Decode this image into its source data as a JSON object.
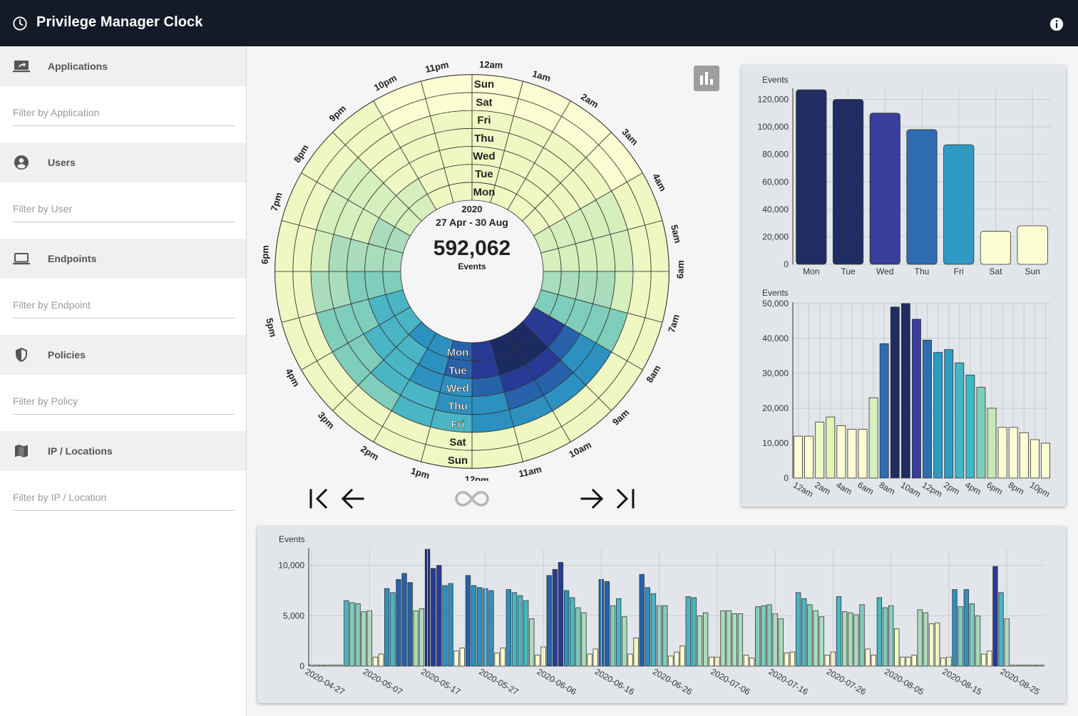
{
  "app": {
    "title": "Privilege Manager Clock"
  },
  "sidebar": {
    "sections": [
      {
        "label": "Applications",
        "placeholder": "Filter by Application",
        "icon": "application-icon"
      },
      {
        "label": "Users",
        "placeholder": "Filter by User",
        "icon": "user-icon"
      },
      {
        "label": "Endpoints",
        "placeholder": "Filter by Endpoint",
        "icon": "laptop-icon"
      },
      {
        "label": "Policies",
        "placeholder": "Filter by Policy",
        "icon": "shield-icon"
      },
      {
        "label": "IP / Locations",
        "placeholder": "Filter by IP / Location",
        "icon": "map-icon"
      }
    ]
  },
  "clock": {
    "year": "2020",
    "range": "27 Apr - 30 Aug",
    "total": "592,062",
    "total_label": "Events",
    "days": [
      "Mon",
      "Tue",
      "Wed",
      "Thu",
      "Fri",
      "Sat",
      "Sun"
    ],
    "hours": [
      "12am",
      "1am",
      "2am",
      "3am",
      "4am",
      "5am",
      "6am",
      "7am",
      "8am",
      "9am",
      "10am",
      "11am",
      "12pm",
      "1pm",
      "2pm",
      "3pm",
      "4pm",
      "5pm",
      "6pm",
      "7pm",
      "8pm",
      "9pm",
      "10pm",
      "11pm"
    ],
    "heat_levels": [
      [
        1,
        1,
        1,
        1,
        2,
        2,
        3,
        4,
        8,
        9,
        9,
        8,
        7,
        6,
        6,
        5,
        5,
        4,
        3,
        3,
        2,
        2,
        1,
        1
      ],
      [
        1,
        1,
        1,
        1,
        2,
        2,
        3,
        4,
        8,
        9,
        9,
        8,
        7,
        6,
        5,
        5,
        5,
        4,
        3,
        3,
        2,
        2,
        1,
        1
      ],
      [
        1,
        1,
        1,
        1,
        2,
        2,
        3,
        4,
        7,
        8,
        8,
        7,
        6,
        6,
        5,
        5,
        4,
        4,
        3,
        2,
        2,
        1,
        1,
        1
      ],
      [
        1,
        1,
        1,
        1,
        2,
        2,
        3,
        4,
        6,
        7,
        7,
        6,
        6,
        5,
        5,
        4,
        4,
        3,
        3,
        2,
        2,
        1,
        1,
        1
      ],
      [
        1,
        1,
        1,
        1,
        2,
        2,
        2,
        4,
        6,
        6,
        6,
        6,
        5,
        5,
        4,
        4,
        4,
        3,
        2,
        2,
        2,
        1,
        1,
        1
      ],
      [
        0,
        0,
        0,
        0,
        1,
        1,
        1,
        1,
        1,
        1,
        1,
        1,
        1,
        1,
        1,
        1,
        1,
        1,
        1,
        1,
        1,
        1,
        0,
        0
      ],
      [
        0,
        0,
        0,
        0,
        1,
        1,
        1,
        1,
        1,
        1,
        1,
        1,
        1,
        1,
        1,
        1,
        1,
        1,
        1,
        1,
        1,
        1,
        0,
        0
      ]
    ],
    "colors": [
      "#fdfdd3",
      "#eff8c2",
      "#d5efbd",
      "#a9dcbc",
      "#7fcdbb",
      "#4ab5c4",
      "#2c91c0",
      "#2762aa",
      "#273b96",
      "#1b2b62"
    ],
    "nav": {
      "first": "first-page-icon",
      "prev": "arrow-left-icon",
      "all": "infinity-icon",
      "next": "arrow-right-icon",
      "last": "last-page-icon"
    }
  },
  "chart_data": [
    {
      "type": "bar",
      "ylabel": "Events",
      "categories": [
        "Mon",
        "Tue",
        "Wed",
        "Thu",
        "Fri",
        "Sat",
        "Sun"
      ],
      "values": [
        127000,
        120000,
        110000,
        98000,
        87000,
        24000,
        28000
      ],
      "yticks": [
        "0",
        "20,000",
        "40,000",
        "60,000",
        "80,000",
        "100,000",
        "120,000"
      ],
      "ylim": [
        0,
        127000
      ],
      "colors": [
        "#1f2d62",
        "#1f2d62",
        "#383e9a",
        "#2f6cb0",
        "#2e9ac4",
        "#fdfdd3",
        "#fdfdd3"
      ]
    },
    {
      "type": "bar",
      "ylabel": "Events",
      "categories": [
        "12am",
        "1am",
        "2am",
        "3am",
        "4am",
        "5am",
        "6am",
        "7am",
        "8am",
        "9am",
        "10am",
        "11am",
        "12pm",
        "1pm",
        "2pm",
        "3pm",
        "4pm",
        "5pm",
        "6pm",
        "7pm",
        "8pm",
        "9pm",
        "10pm",
        "11pm"
      ],
      "tick_labels": [
        "12am",
        "2am",
        "4am",
        "6am",
        "8am",
        "10am",
        "12pm",
        "2pm",
        "4pm",
        "6pm",
        "8pm",
        "10pm"
      ],
      "values": [
        12000,
        12000,
        16000,
        17500,
        15000,
        14000,
        14000,
        23000,
        38500,
        49000,
        50000,
        45500,
        39500,
        36000,
        36800,
        33000,
        29500,
        26000,
        20000,
        14500,
        14500,
        13000,
        11000,
        10000
      ],
      "yticks": [
        "0",
        "10,000",
        "20,000",
        "30,000",
        "40,000",
        "50,000"
      ],
      "ylim": [
        0,
        50000
      ],
      "colors": [
        "#fdfdd3",
        "#fdfdd3",
        "#eff8c2",
        "#e3f3b5",
        "#fdfdd3",
        "#fdfdd3",
        "#fdfdd3",
        "#d5efbd",
        "#2f6cb0",
        "#1f2d62",
        "#1f2d62",
        "#383e9a",
        "#2f6cb0",
        "#2e9ac4",
        "#2e9ac4",
        "#41b6c4",
        "#41b6c4",
        "#7fcdbb",
        "#c7e9b4",
        "#fdfdd3",
        "#fdfdd3",
        "#fdfdd3",
        "#fdfdd3",
        "#fdfdd3"
      ]
    },
    {
      "type": "bar",
      "ylabel": "Events",
      "x_tick_labels": [
        "2020-04-27",
        "2020-05-07",
        "2020-05-17",
        "2020-05-27",
        "2020-06-06",
        "2020-06-16",
        "2020-06-26",
        "2020-07-06",
        "2020-07-16",
        "2020-07-26",
        "2020-08-05",
        "2020-08-15",
        "2020-08-25"
      ],
      "yticks": [
        "0",
        "5,000",
        "10,000"
      ],
      "ylim": [
        0,
        11600
      ],
      "values": [
        100,
        100,
        100,
        100,
        100,
        100,
        6500,
        6300,
        6200,
        5400,
        5500,
        900,
        1200,
        7700,
        7300,
        8600,
        9200,
        8300,
        5500,
        5700,
        11600,
        9700,
        10000,
        8000,
        8200,
        1500,
        1800,
        9000,
        8000,
        7800,
        7700,
        7500,
        1300,
        1800,
        7600,
        7300,
        7000,
        6500,
        4700,
        1100,
        1900,
        9000,
        9600,
        10300,
        7500,
        6800,
        5800,
        5300,
        1200,
        1700,
        8600,
        8400,
        6000,
        6700,
        4900,
        1200,
        2800,
        9100,
        7800,
        7200,
        6000,
        6000,
        1000,
        1400,
        2000,
        6900,
        6800,
        5000,
        5300,
        900,
        900,
        5500,
        5500,
        5200,
        5200,
        1100,
        800,
        5900,
        6000,
        6100,
        5200,
        4700,
        1300,
        1400,
        7300,
        6700,
        6100,
        5500,
        4900,
        1100,
        1400,
        6900,
        5400,
        5300,
        5100,
        6100,
        1700,
        1100,
        6800,
        5800,
        6000,
        3700,
        900,
        900,
        1100,
        5600,
        5300,
        4200,
        4300,
        800,
        900,
        7600,
        5900,
        7600,
        6200,
        5000,
        1200,
        1500,
        9900,
        7300,
        4700,
        100,
        100,
        100,
        100,
        100,
        100
      ]
    }
  ]
}
